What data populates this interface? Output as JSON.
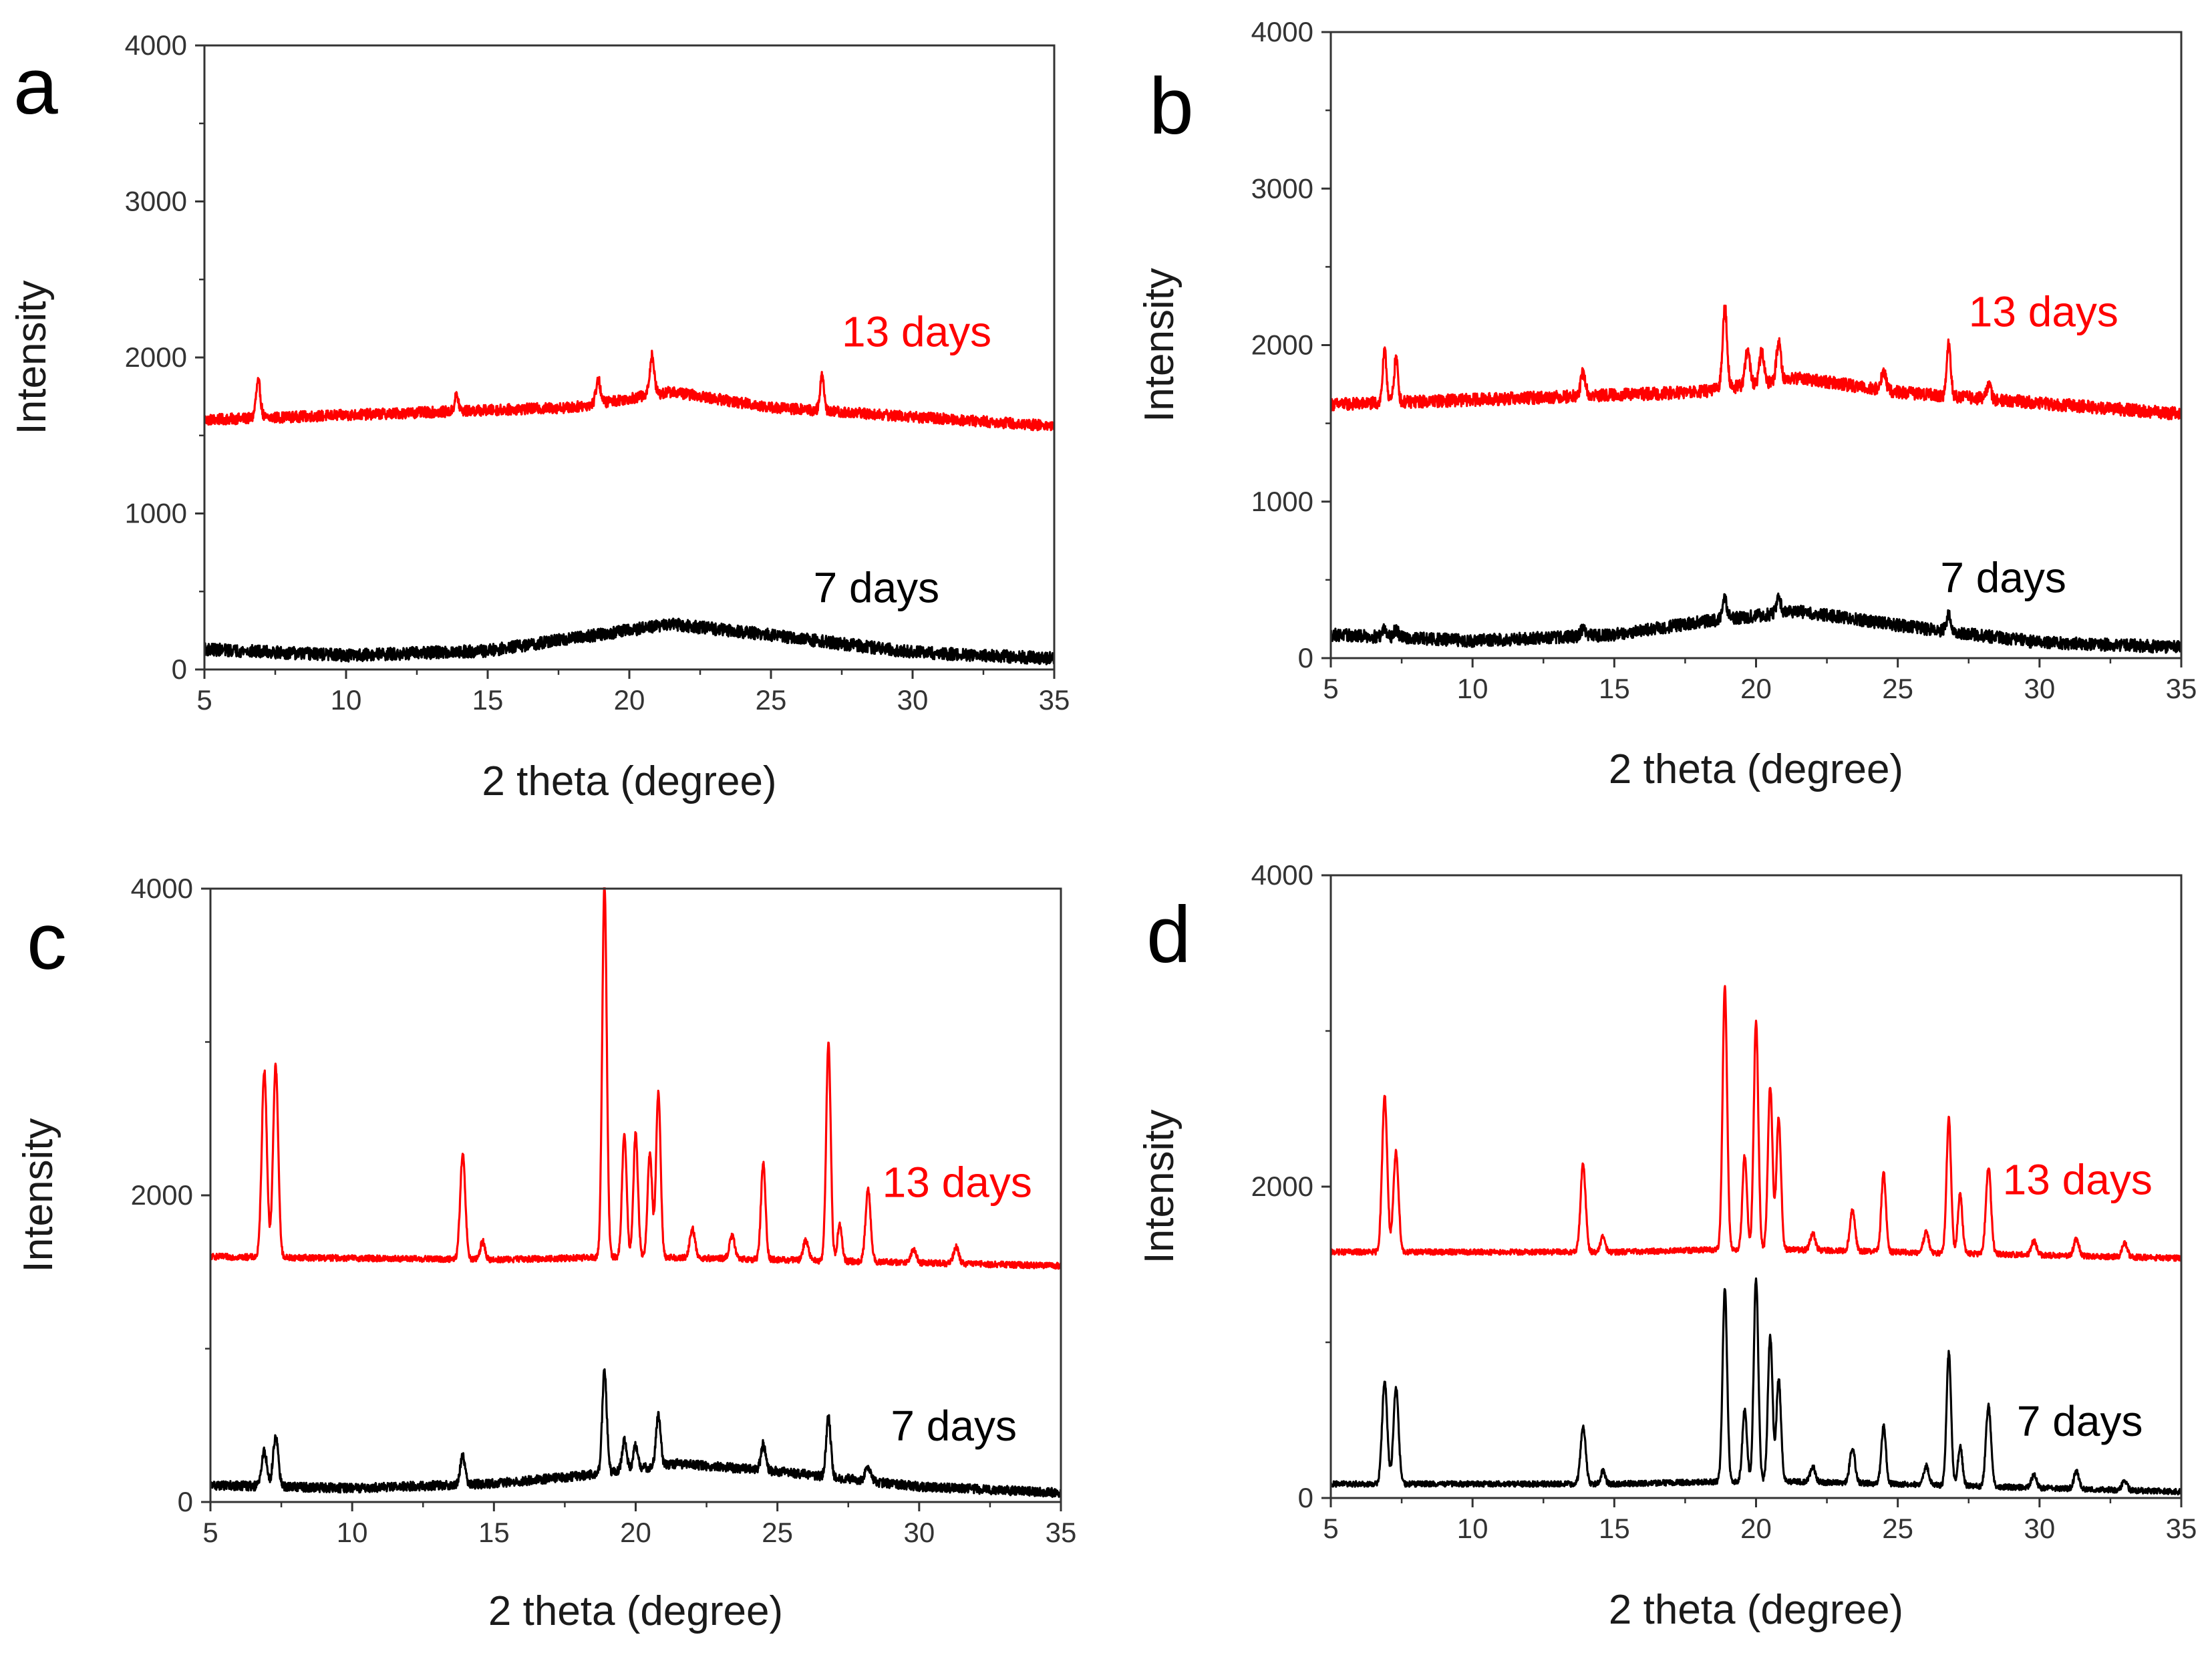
{
  "figure": {
    "colors": {
      "series_13": "#ff0000",
      "series_7": "#000000",
      "axes": "#333333"
    }
  },
  "chart_data": [
    {
      "panel": "a",
      "type": "line",
      "xlabel": "2 theta (degree)",
      "ylabel": "Intensity",
      "xlim": [
        5,
        35
      ],
      "ylim": [
        0,
        4000
      ],
      "xticks": [
        5,
        10,
        15,
        20,
        25,
        30,
        35
      ],
      "yticks": [
        0,
        1000,
        2000,
        3000,
        4000
      ],
      "series": [
        {
          "name": "13 days",
          "color": "#ff0000",
          "baseline": [
            [
              5,
              1600
            ],
            [
              18,
              1680
            ],
            [
              21.5,
              1780
            ],
            [
              25,
              1680
            ],
            [
              35,
              1560
            ]
          ],
          "noise": 35,
          "peaks": [
            [
              6.9,
              230,
              0.08
            ],
            [
              13.9,
              100,
              0.07
            ],
            [
              18.9,
              150,
              0.08
            ],
            [
              20.8,
              250,
              0.08
            ],
            [
              26.8,
              220,
              0.07
            ]
          ]
        },
        {
          "name": "7 days",
          "color": "#000000",
          "baseline": [
            [
              5,
              130
            ],
            [
              10,
              90
            ],
            [
              15,
              120
            ],
            [
              18,
              200
            ],
            [
              21.5,
              290
            ],
            [
              25,
              220
            ],
            [
              30,
              110
            ],
            [
              35,
              70
            ]
          ],
          "noise": 40,
          "peaks": []
        }
      ],
      "annotations": [
        {
          "text": "13 days",
          "x": 27.5,
          "y": 2070,
          "color": "#ff0000"
        },
        {
          "text": "7 days",
          "x": 26.5,
          "y": 430,
          "color": "#000000"
        }
      ]
    },
    {
      "panel": "b",
      "type": "line",
      "xlabel": "2 theta (degree)",
      "ylabel": "Intensity",
      "xlim": [
        5,
        35
      ],
      "ylim": [
        0,
        4000
      ],
      "xticks": [
        5,
        10,
        15,
        20,
        25,
        30,
        35
      ],
      "yticks": [
        0,
        1000,
        2000,
        3000,
        4000
      ],
      "series": [
        {
          "name": "13 days",
          "color": "#ff0000",
          "baseline": [
            [
              5,
              1620
            ],
            [
              18,
              1700
            ],
            [
              21.5,
              1790
            ],
            [
              25,
              1700
            ],
            [
              35,
              1560
            ]
          ],
          "noise": 40,
          "peaks": [
            [
              6.9,
              320,
              0.07
            ],
            [
              7.3,
              280,
              0.07
            ],
            [
              13.9,
              150,
              0.08
            ],
            [
              18.9,
              520,
              0.08
            ],
            [
              19.7,
              230,
              0.08
            ],
            [
              20.2,
              200,
              0.08
            ],
            [
              20.8,
              250,
              0.08
            ],
            [
              24.5,
              120,
              0.08
            ],
            [
              26.8,
              330,
              0.07
            ],
            [
              28.2,
              90,
              0.08
            ]
          ]
        },
        {
          "name": "7 days",
          "color": "#000000",
          "baseline": [
            [
              5,
              150
            ],
            [
              10,
              110
            ],
            [
              15,
              150
            ],
            [
              18,
              230
            ],
            [
              21.5,
              300
            ],
            [
              25,
              210
            ],
            [
              30,
              100
            ],
            [
              35,
              70
            ]
          ],
          "noise": 40,
          "peaks": [
            [
              6.9,
              60,
              0.08
            ],
            [
              7.3,
              50,
              0.08
            ],
            [
              13.9,
              50,
              0.08
            ],
            [
              18.9,
              130,
              0.08
            ],
            [
              20.8,
              100,
              0.08
            ],
            [
              26.8,
              100,
              0.08
            ]
          ]
        }
      ],
      "annotations": [
        {
          "text": "13 days",
          "x": 27.5,
          "y": 2120,
          "color": "#ff0000"
        },
        {
          "text": "7 days",
          "x": 26.5,
          "y": 420,
          "color": "#000000"
        }
      ]
    },
    {
      "panel": "c",
      "type": "line",
      "xlabel": "2 theta (degree)",
      "ylabel": "Intensity",
      "xlim": [
        5,
        35
      ],
      "ylim": [
        0,
        4000
      ],
      "xticks": [
        5,
        10,
        15,
        20,
        25,
        30,
        35
      ],
      "yticks": [
        0,
        2000,
        4000
      ],
      "series": [
        {
          "name": "13 days",
          "color": "#ff0000",
          "baseline": [
            [
              5,
              1600
            ],
            [
              15,
              1580
            ],
            [
              20,
              1600
            ],
            [
              25,
              1580
            ],
            [
              35,
              1540
            ]
          ],
          "noise": 20,
          "peaks": [
            [
              6.9,
              1220,
              0.09
            ],
            [
              7.3,
              1250,
              0.09
            ],
            [
              13.9,
              680,
              0.09
            ],
            [
              14.6,
              120,
              0.08
            ],
            [
              18.9,
              2430,
              0.08
            ],
            [
              19.6,
              800,
              0.08
            ],
            [
              20.0,
              800,
              0.08
            ],
            [
              20.5,
              670,
              0.08
            ],
            [
              20.8,
              1070,
              0.08
            ],
            [
              22.0,
              190,
              0.09
            ],
            [
              23.4,
              150,
              0.09
            ],
            [
              24.5,
              630,
              0.08
            ],
            [
              26.0,
              130,
              0.09
            ],
            [
              26.8,
              1420,
              0.08
            ],
            [
              27.2,
              240,
              0.08
            ],
            [
              28.2,
              470,
              0.09
            ],
            [
              29.8,
              90,
              0.09
            ],
            [
              31.3,
              110,
              0.09
            ]
          ]
        },
        {
          "name": "7 days",
          "color": "#000000",
          "baseline": [
            [
              5,
              110
            ],
            [
              10,
              90
            ],
            [
              15,
              120
            ],
            [
              18,
              170
            ],
            [
              21.5,
              250
            ],
            [
              25,
              200
            ],
            [
              30,
              100
            ],
            [
              35,
              60
            ]
          ],
          "noise": 30,
          "peaks": [
            [
              6.9,
              230,
              0.09
            ],
            [
              7.3,
              330,
              0.09
            ],
            [
              13.9,
              180,
              0.09
            ],
            [
              18.9,
              660,
              0.08
            ],
            [
              19.6,
              190,
              0.08
            ],
            [
              20.0,
              150,
              0.08
            ],
            [
              20.8,
              330,
              0.08
            ],
            [
              24.5,
              170,
              0.08
            ],
            [
              26.8,
              390,
              0.08
            ],
            [
              28.2,
              100,
              0.09
            ]
          ]
        }
      ],
      "annotations": [
        {
          "text": "13 days",
          "x": 28.7,
          "y": 1990,
          "color": "#ff0000"
        },
        {
          "text": "7 days",
          "x": 29.0,
          "y": 400,
          "color": "#000000"
        }
      ]
    },
    {
      "panel": "d",
      "type": "line",
      "xlabel": "2 theta (degree)",
      "ylabel": "Intensity",
      "xlim": [
        5,
        35
      ],
      "ylim": [
        0,
        4000
      ],
      "xticks": [
        5,
        10,
        15,
        20,
        25,
        30,
        35
      ],
      "yticks": [
        0,
        2000,
        4000
      ],
      "series": [
        {
          "name": "13 days",
          "color": "#ff0000",
          "baseline": [
            [
              5,
              1580
            ],
            [
              15,
              1580
            ],
            [
              20,
              1600
            ],
            [
              25,
              1580
            ],
            [
              35,
              1540
            ]
          ],
          "noise": 18,
          "peaks": [
            [
              6.9,
              1000,
              0.09
            ],
            [
              7.3,
              640,
              0.09
            ],
            [
              13.9,
              560,
              0.09
            ],
            [
              14.6,
              100,
              0.08
            ],
            [
              18.9,
              1680,
              0.08
            ],
            [
              19.6,
              600,
              0.08
            ],
            [
              20.0,
              1460,
              0.08
            ],
            [
              20.5,
              1050,
              0.08
            ],
            [
              20.8,
              850,
              0.08
            ],
            [
              22.0,
              110,
              0.09
            ],
            [
              23.4,
              260,
              0.09
            ],
            [
              24.5,
              510,
              0.08
            ],
            [
              26.0,
              130,
              0.09
            ],
            [
              26.8,
              860,
              0.08
            ],
            [
              27.2,
              380,
              0.08
            ],
            [
              28.2,
              560,
              0.09
            ],
            [
              29.8,
              90,
              0.09
            ],
            [
              31.3,
              110,
              0.09
            ],
            [
              33.0,
              90,
              0.09
            ]
          ]
        },
        {
          "name": "7 days",
          "color": "#000000",
          "baseline": [
            [
              5,
              90
            ],
            [
              15,
              90
            ],
            [
              20,
              110
            ],
            [
              25,
              90
            ],
            [
              35,
              40
            ]
          ],
          "noise": 18,
          "peaks": [
            [
              6.9,
              660,
              0.09
            ],
            [
              7.3,
              620,
              0.09
            ],
            [
              13.9,
              370,
              0.09
            ],
            [
              14.6,
              80,
              0.08
            ],
            [
              18.9,
              1230,
              0.08
            ],
            [
              19.6,
              460,
              0.08
            ],
            [
              20.0,
              1300,
              0.08
            ],
            [
              20.5,
              940,
              0.08
            ],
            [
              20.8,
              660,
              0.08
            ],
            [
              22.0,
              100,
              0.09
            ],
            [
              23.4,
              230,
              0.09
            ],
            [
              24.5,
              370,
              0.08
            ],
            [
              26.0,
              120,
              0.09
            ],
            [
              26.8,
              850,
              0.08
            ],
            [
              27.2,
              250,
              0.08
            ],
            [
              28.2,
              520,
              0.09
            ],
            [
              29.8,
              80,
              0.09
            ],
            [
              31.3,
              110,
              0.09
            ],
            [
              33.0,
              60,
              0.09
            ]
          ]
        }
      ],
      "annotations": [
        {
          "text": "13 days",
          "x": 28.7,
          "y": 1950,
          "color": "#ff0000"
        },
        {
          "text": "7 days",
          "x": 29.2,
          "y": 400,
          "color": "#000000"
        }
      ]
    }
  ]
}
